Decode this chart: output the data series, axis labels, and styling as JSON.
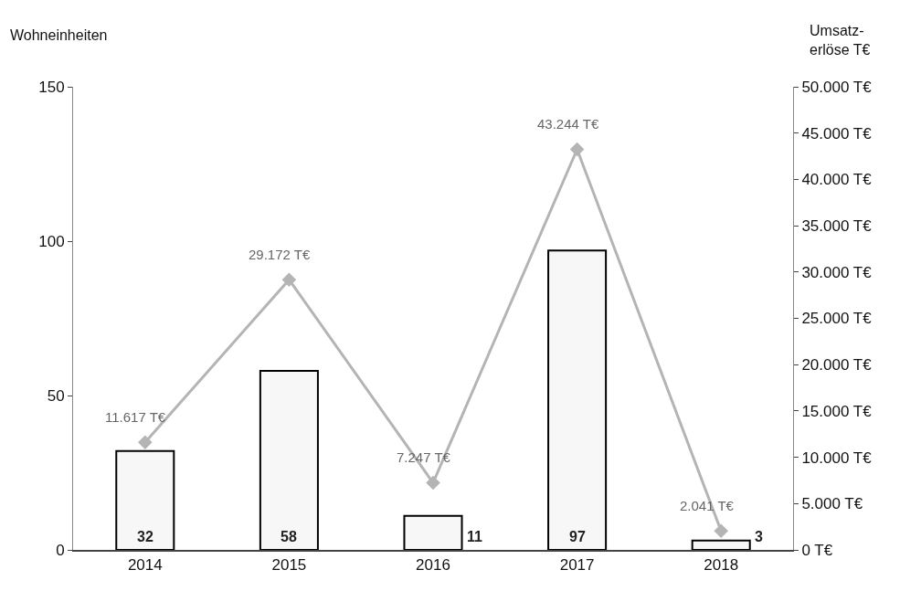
{
  "chart_data": {
    "type": "bar",
    "ylabel": "Wohneinheiten",
    "y2label": "Umsatz-\nerlöse T€",
    "categories": [
      "2014",
      "2015",
      "2016",
      "2017",
      "2018"
    ],
    "series": [
      {
        "color": "#f7f7f7",
        "values": [
          32,
          58,
          11,
          97,
          3
        ],
        "value_labels": [
          "32",
          "58",
          "11",
          "97",
          "3"
        ]
      },
      {
        "type": "line",
        "axis": "y2",
        "color": "#b4b4b4",
        "values": [
          11617,
          29172,
          7247,
          43244,
          2041
        ],
        "value_labels": [
          "11.617 T€",
          "29.172 T€",
          "7.247 T€",
          "43.244 T€",
          "2.041 T€"
        ]
      }
    ],
    "ylim": [
      0,
      150
    ],
    "yticks": [
      0,
      50,
      100,
      150
    ],
    "y2lim": [
      0,
      50000
    ],
    "y2ticks": [
      {
        "value": 0,
        "label": "0 T€"
      },
      {
        "value": 5000,
        "label": "5.000 T€"
      },
      {
        "value": 10000,
        "label": "10.000 T€"
      },
      {
        "value": 15000,
        "label": "15.000 T€"
      },
      {
        "value": 20000,
        "label": "20.000 T€"
      },
      {
        "value": 25000,
        "label": "25.000 T€"
      },
      {
        "value": 30000,
        "label": "30.000 T€"
      },
      {
        "value": 35000,
        "label": "35.000 T€"
      },
      {
        "value": 40000,
        "label": "40.000 T€"
      },
      {
        "value": 45000,
        "label": "45.000 T€"
      },
      {
        "value": 50000,
        "label": "50.000 T€"
      }
    ],
    "marker": "diamond"
  }
}
